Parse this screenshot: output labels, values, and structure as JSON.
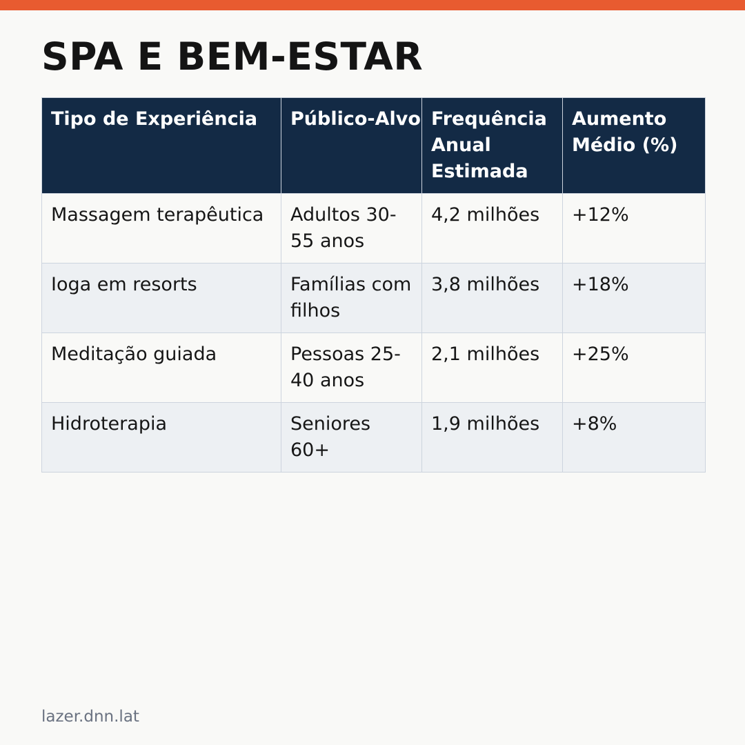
{
  "colors": {
    "accent_bar": "#e85b30",
    "header_background": "#132a45",
    "header_text": "#ffffff",
    "row_stripe": "#edf0f3",
    "border": "#cdd4de",
    "footer_text": "#6a7281"
  },
  "page": {
    "title": "SPA E BEM-ESTAR"
  },
  "table": {
    "headers": [
      "Tipo de Experiência",
      "Público-Alvo",
      "Frequência Anual Estimada",
      "Aumento Médio (%)"
    ],
    "rows": [
      [
        "Massagem terapêutica",
        "Adultos 30-55 anos",
        "4,2 milhões",
        "+12%"
      ],
      [
        "Ioga em resorts",
        "Famílias com filhos",
        "3,8 milhões",
        "+18%"
      ],
      [
        "Meditação guiada",
        "Pessoas 25-40 anos",
        "2,1 milhões",
        "+25%"
      ],
      [
        "Hidroterapia",
        "Seniores 60+",
        "1,9 milhões",
        "+8%"
      ]
    ]
  },
  "footer": {
    "source": "lazer.dnn.lat"
  }
}
